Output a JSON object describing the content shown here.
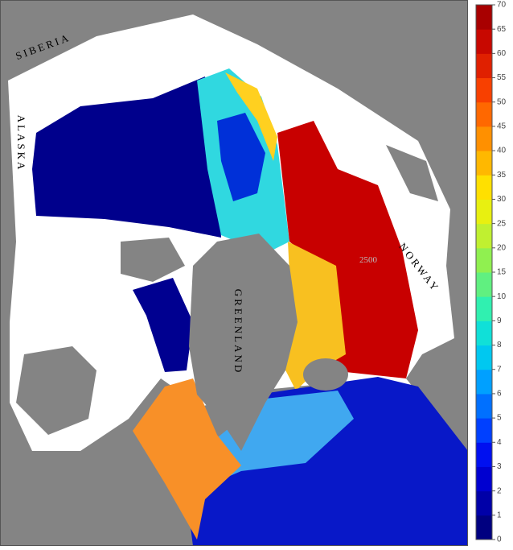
{
  "map": {
    "labels": [
      "SIBERIA",
      "ALASKA",
      "GREENLAND",
      "NORWAY"
    ],
    "contour_label": "2500",
    "colorbar": {
      "ticks": [
        0,
        1,
        2,
        3,
        4,
        5,
        6,
        7,
        8,
        9,
        10,
        15,
        20,
        25,
        30,
        35,
        40,
        45,
        50,
        55,
        60,
        65,
        70
      ],
      "colors": [
        "#000080",
        "#0000a8",
        "#0000d0",
        "#0010f0",
        "#0040ff",
        "#0070ff",
        "#00a0ff",
        "#00c8f0",
        "#10e0d8",
        "#30f0b0",
        "#60f080",
        "#90f050",
        "#c0f030",
        "#e8f010",
        "#ffe000",
        "#ffb800",
        "#ff9000",
        "#ff6800",
        "#f84000",
        "#e02000",
        "#c80800",
        "#a80000"
      ]
    }
  }
}
